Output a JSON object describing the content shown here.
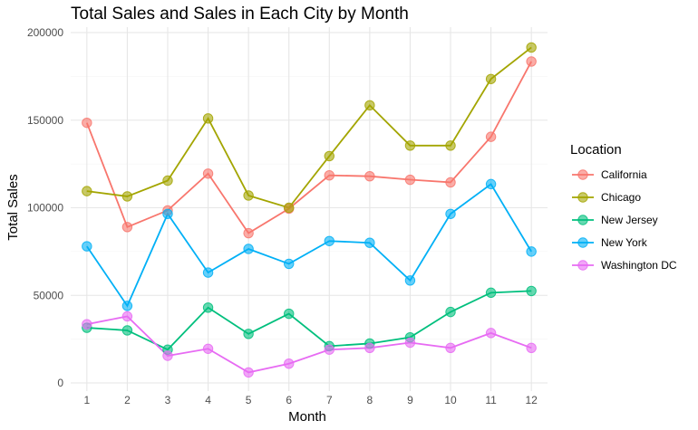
{
  "chart_data": {
    "type": "line",
    "title": "Total Sales and Sales in Each City by Month",
    "xlabel": "Month",
    "ylabel": "Total Sales",
    "x": [
      1,
      2,
      3,
      4,
      5,
      6,
      7,
      8,
      9,
      10,
      11,
      12
    ],
    "xlim": [
      0.6,
      12.4
    ],
    "ylim": [
      0,
      200000
    ],
    "yticks": [
      0,
      50000,
      100000,
      150000,
      200000
    ],
    "ytick_labels": [
      "0",
      "50000",
      "100000",
      "150000",
      "200000"
    ],
    "grid": true,
    "legend": {
      "title": "Location",
      "position": "right"
    },
    "series": [
      {
        "name": "California",
        "color": "#F8766D",
        "values": [
          148500,
          89000,
          98500,
          119500,
          85500,
          99500,
          118500,
          118000,
          116000,
          114500,
          140500,
          183500
        ]
      },
      {
        "name": "Chicago",
        "color": "#A3A500",
        "values": [
          109500,
          106500,
          115500,
          151000,
          107000,
          100000,
          129500,
          158500,
          135500,
          135500,
          173500,
          191500
        ]
      },
      {
        "name": "New Jersey",
        "color": "#00BF7D",
        "values": [
          31500,
          30000,
          19000,
          43000,
          28000,
          39500,
          21000,
          22500,
          26000,
          40500,
          51500,
          52500
        ]
      },
      {
        "name": "New York",
        "color": "#00B0F6",
        "values": [
          78000,
          44000,
          96500,
          63000,
          76500,
          68000,
          81000,
          80000,
          58500,
          96500,
          113500,
          75000
        ]
      },
      {
        "name": "Washington DC",
        "color": "#E76BF3",
        "values": [
          33500,
          38000,
          15500,
          19500,
          6000,
          11000,
          19000,
          20000,
          23000,
          20000,
          28500,
          20000
        ]
      }
    ]
  }
}
